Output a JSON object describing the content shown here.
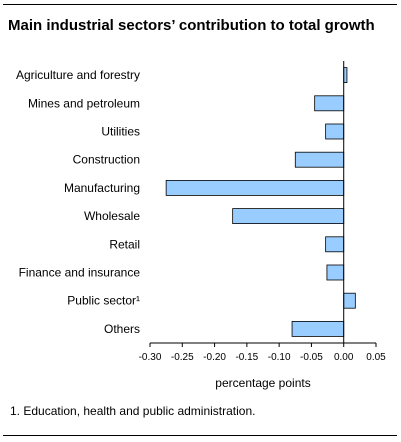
{
  "title": "Main industrial sectors’ contribution to total growth",
  "footnote": "1. Education, health and public administration.",
  "chart_data": {
    "type": "bar",
    "orientation": "horizontal",
    "title": "Main industrial sectors’ contribution to total growth",
    "xlabel": "percentage points",
    "ylabel": "",
    "categories": [
      "Agriculture and forestry",
      "Mines and petroleum",
      "Utilities",
      "Construction",
      "Manufacturing",
      "Wholesale",
      "Retail",
      "Finance and insurance",
      "Public sector¹",
      "Others"
    ],
    "values": [
      0.005,
      -0.045,
      -0.028,
      -0.075,
      -0.275,
      -0.172,
      -0.028,
      -0.026,
      0.018,
      -0.08
    ],
    "xlim": [
      -0.3,
      0.05
    ],
    "ticks": [
      -0.3,
      -0.25,
      -0.2,
      -0.15,
      -0.1,
      -0.05,
      0.0,
      0.05
    ],
    "tick_labels": [
      "-0.30",
      "-0.25",
      "-0.20",
      "-0.15",
      "-0.10",
      "-0.05",
      "0.00",
      "0.05"
    ],
    "grid": false,
    "legend": "none",
    "bar_color": "#99ccff",
    "bar_edge_color": "#000000"
  }
}
